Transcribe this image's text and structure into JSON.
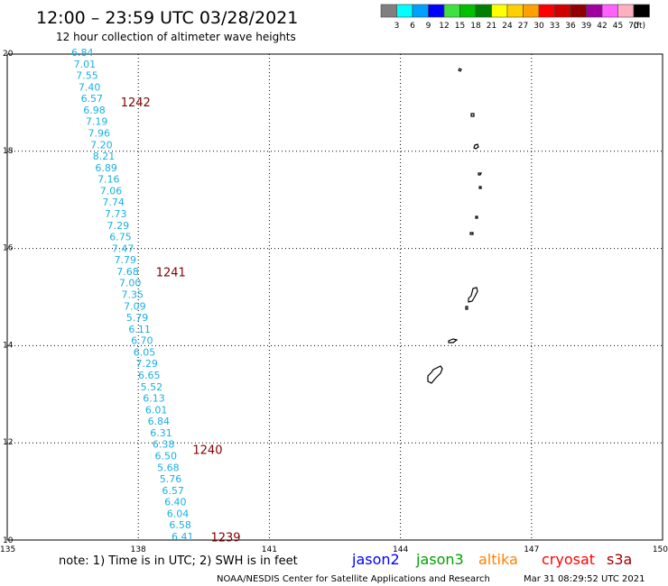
{
  "header": {
    "title": "12:00 – 23:59 UTC 03/28/2021",
    "subtitle": "12 hour collection of altimeter wave heights"
  },
  "legend": {
    "unit": "(ft)",
    "swatches": [
      {
        "color": "#7f7f7f",
        "label": "3"
      },
      {
        "color": "#00ffff",
        "label": "6"
      },
      {
        "color": "#00a0ff",
        "label": "9"
      },
      {
        "color": "#0000ff",
        "label": "12"
      },
      {
        "color": "#40e040",
        "label": "15"
      },
      {
        "color": "#00c000",
        "label": "18"
      },
      {
        "color": "#008000",
        "label": "21"
      },
      {
        "color": "#ffff00",
        "label": "24"
      },
      {
        "color": "#ffd000",
        "label": "27"
      },
      {
        "color": "#ffa000",
        "label": "30"
      },
      {
        "color": "#ff0000",
        "label": "33"
      },
      {
        "color": "#d00000",
        "label": "36"
      },
      {
        "color": "#900000",
        "label": "39"
      },
      {
        "color": "#a000a0",
        "label": "42"
      },
      {
        "color": "#ff60ff",
        "label": "45"
      },
      {
        "color": "#ffb0c0",
        "label": "70"
      },
      {
        "color": "#000000",
        "label": ""
      }
    ]
  },
  "axes": {
    "lon_labels": [
      "135",
      "138",
      "141",
      "144",
      "147",
      "150"
    ],
    "lat_labels": [
      "20",
      "18",
      "16",
      "14",
      "12",
      "10"
    ]
  },
  "track": {
    "color": "#1ab0e0",
    "values": [
      "6.84",
      "7.01",
      "7.55",
      "7.40",
      "6.57",
      "6.98",
      "7.19",
      "7.96",
      "7.20",
      "8.21",
      "6.89",
      "7.16",
      "7.06",
      "7.74",
      "7.73",
      "7.29",
      "6.75",
      "7.47",
      "7.79",
      "7.68",
      "7.00",
      "7.35",
      "7.09",
      "5.79",
      "6.11",
      "6.70",
      "6.05",
      "7.29",
      "6.65",
      "5.52",
      "6.13",
      "6.01",
      "6.84",
      "6.31",
      "6.38",
      "6.50",
      "5.68",
      "5.76",
      "6.57",
      "6.40",
      "6.04",
      "6.58",
      "6.41"
    ]
  },
  "time_labels": {
    "color": "#800000",
    "items": [
      {
        "label": "1242",
        "lat": 19.0
      },
      {
        "label": "1241",
        "lat": 15.5
      },
      {
        "label": "1240",
        "lat": 11.85
      },
      {
        "label": "1239",
        "lat": 10.05
      }
    ]
  },
  "footer": {
    "note": "note: 1) Time is in UTC; 2) SWH is in feet",
    "satellites": [
      {
        "name": "jason2",
        "color": "#0000ff"
      },
      {
        "name": "jason3",
        "color": "#00a000"
      },
      {
        "name": "altika",
        "color": "#ff8000"
      },
      {
        "name": "cryosat",
        "color": "#ff0000"
      },
      {
        "name": "s3a",
        "color": "#a00000"
      }
    ],
    "credit": "NOAA/NESDIS Center for Satellite Applications and Research",
    "timestamp": "Mar 31 08:29:52 UTC 2021"
  },
  "map_extent": {
    "lon": [
      135,
      150
    ],
    "lat": [
      10,
      20
    ]
  }
}
